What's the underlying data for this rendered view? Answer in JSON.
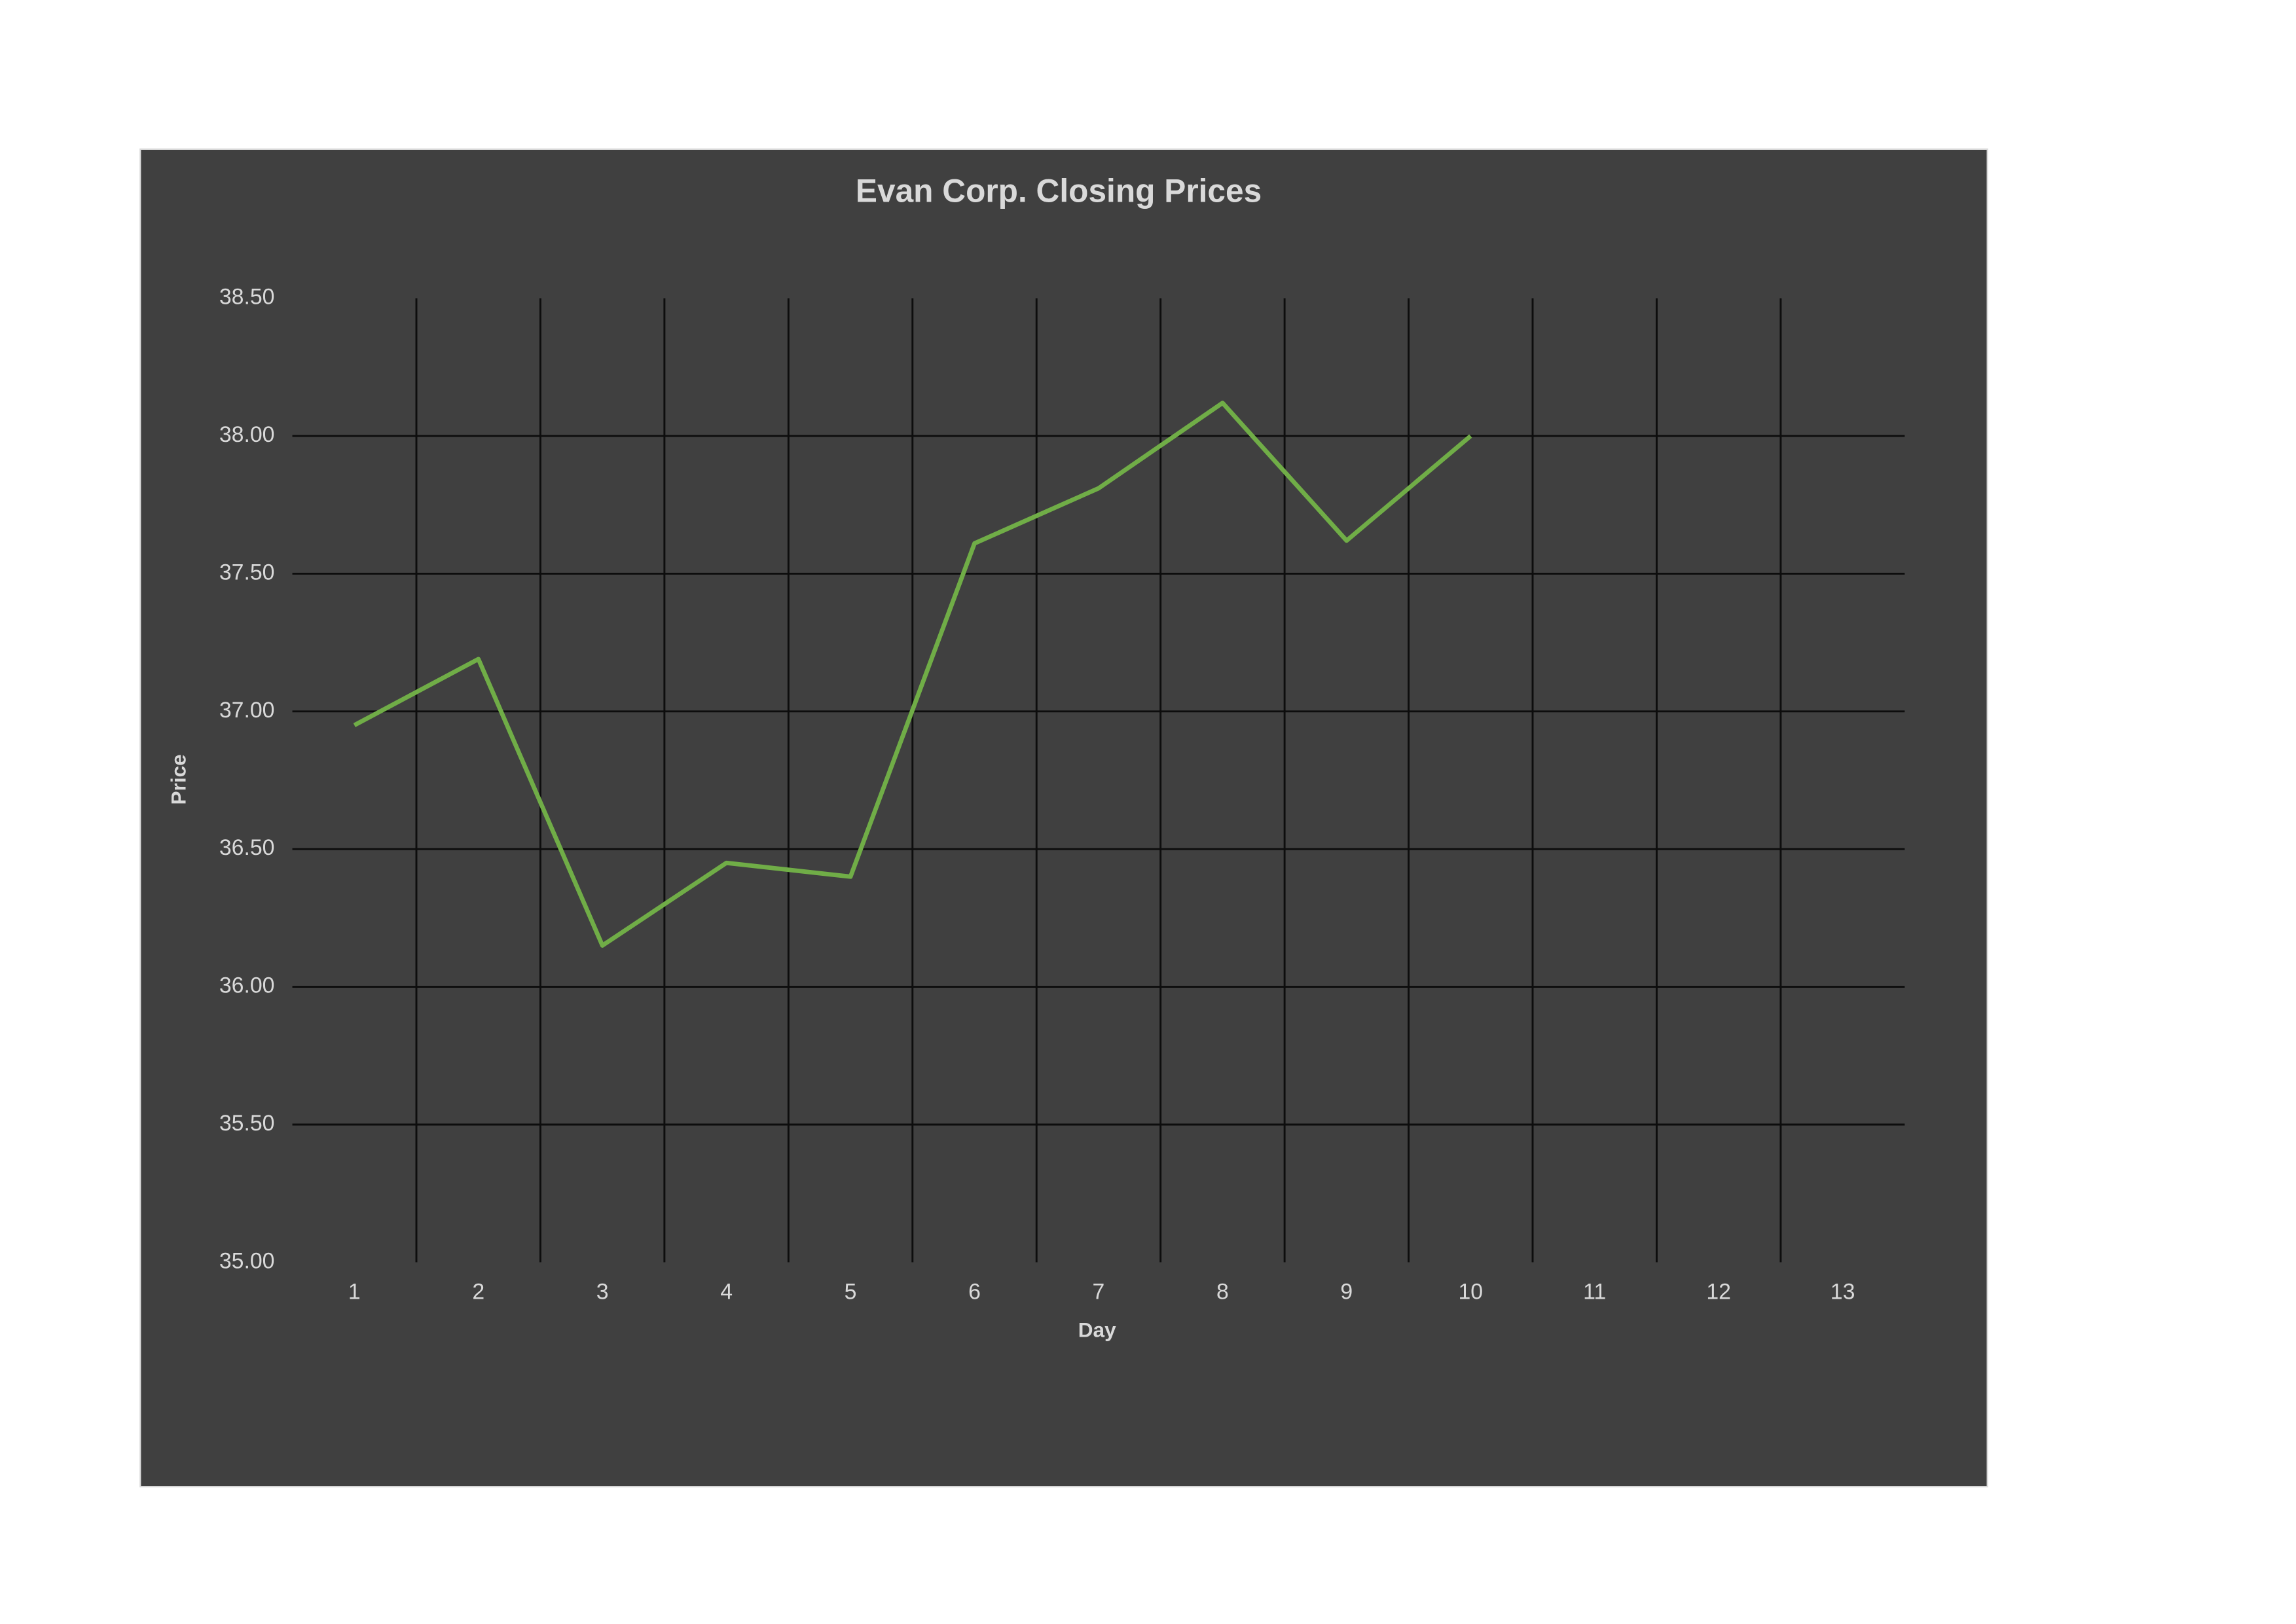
{
  "chart_data": {
    "type": "line",
    "title": "Evan Corp. Closing Prices",
    "x_label": "Day",
    "y_label": "Price",
    "categories": [
      "1",
      "2",
      "3",
      "4",
      "5",
      "6",
      "7",
      "8",
      "9",
      "10",
      "11",
      "12",
      "13"
    ],
    "series": [
      {
        "name": "Price",
        "color": "#70ad47",
        "values": [
          36.95,
          37.19,
          36.15,
          36.45,
          36.4,
          37.61,
          37.81,
          38.12,
          37.62,
          38.0,
          null,
          null,
          null
        ]
      }
    ],
    "ylim": [
      35,
      38.5
    ],
    "yticks": [
      {
        "value": 35,
        "label": "35.00"
      },
      {
        "value": 35.5,
        "label": "35.50"
      },
      {
        "value": 36,
        "label": "36.00"
      },
      {
        "value": 36.5,
        "label": "36.50"
      },
      {
        "value": 37,
        "label": "37.00"
      },
      {
        "value": 37.5,
        "label": "37.50"
      },
      {
        "value": 38,
        "label": "38.00"
      },
      {
        "value": 38.5,
        "label": "38.50"
      }
    ],
    "grid": true,
    "legend": false
  }
}
